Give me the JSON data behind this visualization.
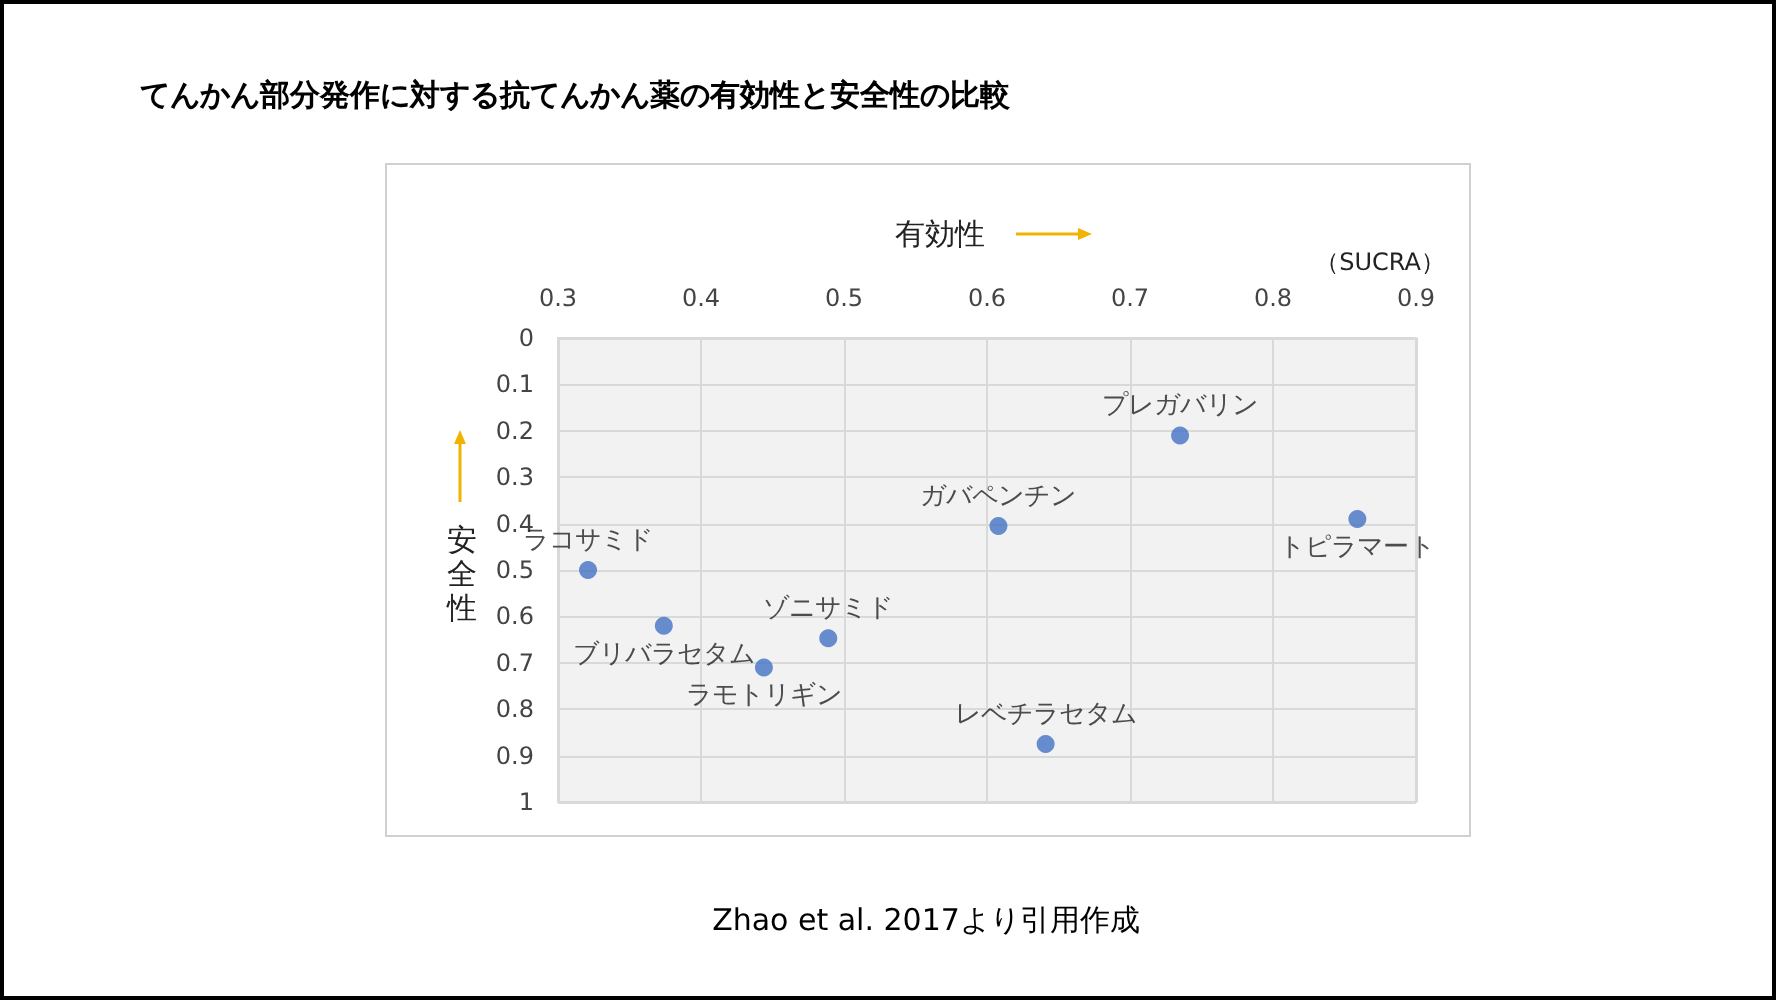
{
  "chart_data": {
    "type": "scatter",
    "title": "てんかん部分発作に対する抗てんかん薬の有効性と安全性の比較",
    "xlabel": "有効性",
    "ylabel": "安全性",
    "x": [
      0.735,
      0.859,
      0.608,
      0.321,
      0.489,
      0.374,
      0.444,
      0.641
    ],
    "series": [
      {
        "color": "#4472c4",
        "values": [
          0.21,
          0.39,
          0.405,
          0.5,
          0.647,
          0.62,
          0.71,
          0.875
        ]
      }
    ],
    "annotations": [
      {
        "text": "プレガバリン",
        "x": 0.735,
        "y": 0.21
      },
      {
        "text": "トピラマート",
        "x": 0.859,
        "y": 0.39
      },
      {
        "text": "ガバペンチン",
        "x": 0.608,
        "y": 0.405
      },
      {
        "text": "ラコサミド",
        "x": 0.321,
        "y": 0.5
      },
      {
        "text": "ゾニサミド",
        "x": 0.489,
        "y": 0.647
      },
      {
        "text": "ブリバラセタム",
        "x": 0.374,
        "y": 0.62
      },
      {
        "text": "ラモトリギン",
        "x": 0.444,
        "y": 0.71
      },
      {
        "text": "レベチラセタム",
        "x": 0.641,
        "y": 0.875
      },
      "（SUCRA）",
      "Zhao et al. 2017より引用作成"
    ],
    "xlim": [
      0.3,
      0.9
    ],
    "xticks": [
      0.3,
      0.4,
      0.5,
      0.6,
      0.7,
      0.8,
      0.9
    ],
    "ylim": [
      1,
      0
    ],
    "yticks": [
      0,
      0.1,
      0.2,
      0.3,
      0.4,
      0.5,
      0.6,
      0.7,
      0.8,
      0.9,
      1
    ],
    "grid": true,
    "marker": "circle"
  }
}
